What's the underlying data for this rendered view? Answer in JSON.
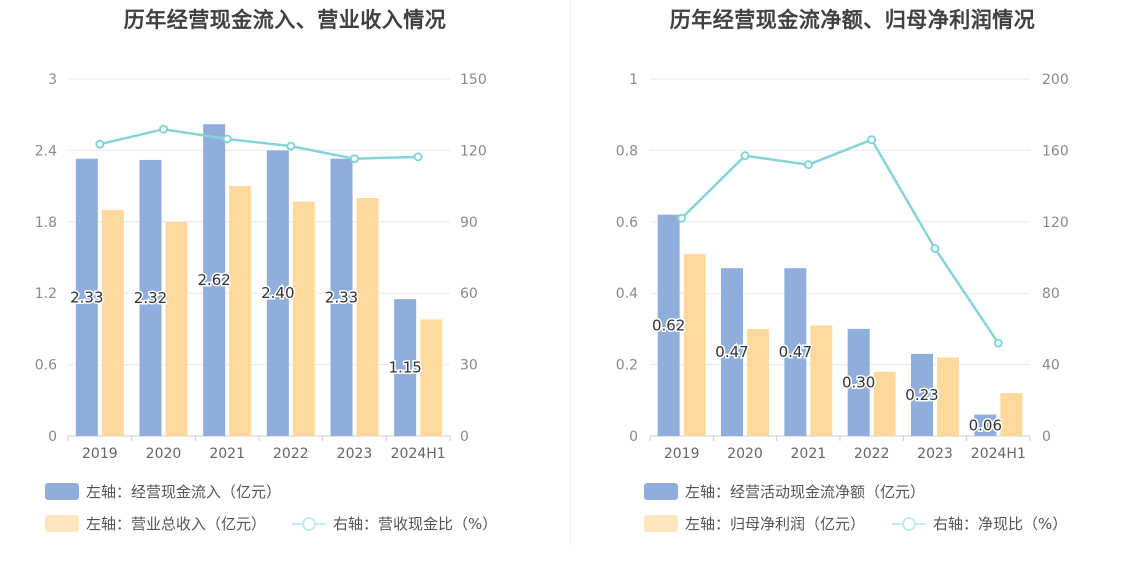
{
  "charts": [
    {
      "title": "历年经营现金流入、营业收入情况",
      "legend": {
        "bar1": "左轴：经营现金流入（亿元）",
        "bar2": "左轴：营业总收入（亿元）",
        "line": "右轴：营收现金比（%）"
      },
      "colors": {
        "bar1": "#8faedb",
        "bar2": "#ffd99c",
        "line": "#86d4d9",
        "line_legend": "#c2ecef"
      }
    },
    {
      "title": "历年经营现金流净额、归母净利润情况",
      "legend": {
        "bar1": "左轴：经营活动现金流净额（亿元）",
        "bar2": "左轴：归母净利润（亿元）",
        "line": "右轴：净现比（%）"
      },
      "colors": {
        "bar1": "#8faedb",
        "bar2": "#ffd99c",
        "line": "#86d4d9",
        "line_legend": "#c2ecef"
      }
    }
  ],
  "chart_data": [
    {
      "type": "bar",
      "title": "历年经营现金流入、营业收入情况",
      "categories": [
        "2019",
        "2020",
        "2021",
        "2022",
        "2023",
        "2024H1"
      ],
      "series": [
        {
          "name": "左轴：经营现金流入（亿元）",
          "axis": "left",
          "type": "bar",
          "values": [
            2.33,
            2.32,
            2.62,
            2.4,
            2.33,
            1.15
          ],
          "labels": [
            "2.33",
            "2.32",
            "2.62",
            "2.40",
            "2.33",
            "1.15"
          ]
        },
        {
          "name": "左轴：营业总收入（亿元）",
          "axis": "left",
          "type": "bar",
          "values": [
            1.9,
            1.8,
            2.1,
            1.97,
            2.0,
            0.98
          ]
        },
        {
          "name": "右轴：营收现金比（%）",
          "axis": "right",
          "type": "line",
          "values": [
            122.6,
            128.9,
            124.8,
            121.8,
            116.5,
            117.3
          ]
        }
      ],
      "y_left": {
        "min": 0,
        "max": 3,
        "ticks": [
          "0",
          "0.6",
          "1.2",
          "1.8",
          "2.4",
          "3"
        ]
      },
      "y_right": {
        "min": 0,
        "max": 150,
        "ticks": [
          "0",
          "30",
          "60",
          "90",
          "120",
          "150"
        ]
      },
      "grid": true,
      "legend_position": "bottom-left"
    },
    {
      "type": "bar",
      "title": "历年经营现金流净额、归母净利润情况",
      "categories": [
        "2019",
        "2020",
        "2021",
        "2022",
        "2023",
        "2024H1"
      ],
      "series": [
        {
          "name": "左轴：经营活动现金流净额（亿元）",
          "axis": "left",
          "type": "bar",
          "values": [
            0.62,
            0.47,
            0.47,
            0.3,
            0.23,
            0.06
          ],
          "labels": [
            "0.62",
            "0.47",
            "0.47",
            "0.30",
            "0.23",
            "0.06"
          ]
        },
        {
          "name": "左轴：归母净利润（亿元）",
          "axis": "left",
          "type": "bar",
          "values": [
            0.51,
            0.3,
            0.31,
            0.18,
            0.22,
            0.12
          ]
        },
        {
          "name": "右轴：净现比（%）",
          "axis": "right",
          "type": "line",
          "values": [
            122,
            157,
            152,
            166,
            105,
            52
          ]
        }
      ],
      "y_left": {
        "min": 0,
        "max": 1,
        "ticks": [
          "0",
          "0.2",
          "0.4",
          "0.6",
          "0.8",
          "1"
        ]
      },
      "y_right": {
        "min": 0,
        "max": 200,
        "ticks": [
          "0",
          "40",
          "80",
          "120",
          "160",
          "200"
        ]
      },
      "grid": true,
      "legend_position": "bottom-left"
    }
  ]
}
